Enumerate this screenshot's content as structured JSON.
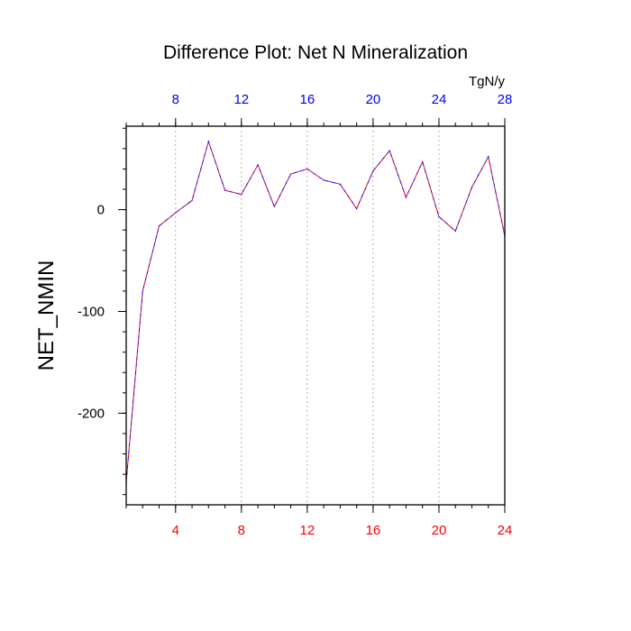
{
  "colors": {
    "bottom_tick_labels": "#ff0000",
    "top_tick_labels": "#0000ff",
    "left_tick_labels": "#000000",
    "series_dash_a": "#ff0000",
    "series_dash_b": "#0000ff",
    "grid": "#a0a0a0"
  },
  "chart_data": {
    "type": "line",
    "title": "Difference Plot: Net N Mineralization",
    "ylabel": "NET_NMIN",
    "top_axis_units": "TgN/y",
    "xlim": [
      1,
      24
    ],
    "ylim": [
      -290,
      82
    ],
    "grid": "vertical dotted",
    "bottom_axis": {
      "ticks": [
        4,
        8,
        12,
        16,
        20,
        24
      ],
      "labels": [
        "4",
        "8",
        "12",
        "16",
        "20",
        "24"
      ]
    },
    "top_axis": {
      "ticks": [
        4,
        8,
        12,
        16,
        20,
        24
      ],
      "labels": [
        "8",
        "12",
        "16",
        "20",
        "24",
        "28"
      ]
    },
    "left_axis": {
      "ticks": [
        -200,
        -100,
        0
      ],
      "labels": [
        "-200",
        "-100",
        "0"
      ],
      "minor_step": 20
    },
    "series": [
      {
        "x": [
          1,
          2,
          3,
          4,
          5,
          6,
          7,
          8,
          9,
          10,
          11,
          12,
          13,
          14,
          15,
          16,
          17,
          18,
          19,
          20,
          21,
          22,
          23,
          24
        ],
        "values": [
          -268,
          -80,
          -16,
          -3,
          9,
          67,
          19,
          15,
          44,
          3,
          35,
          40,
          29,
          25,
          1,
          38,
          58,
          12,
          47,
          -7,
          -21,
          22,
          52,
          -26
        ]
      }
    ]
  }
}
